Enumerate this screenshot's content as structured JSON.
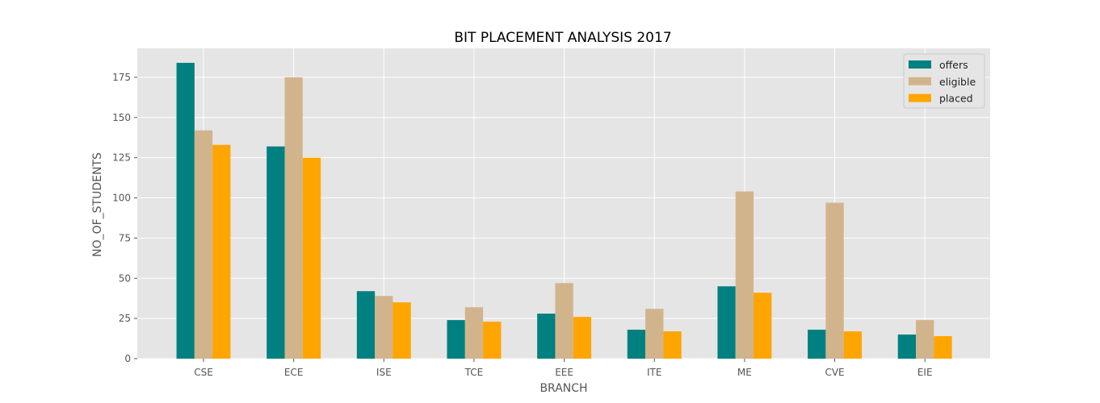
{
  "chart_data": {
    "type": "bar",
    "title": "BIT PLACEMENT ANALYSIS 2017",
    "xlabel": "BRANCH",
    "ylabel": "NO_OF_STUDENTS",
    "categories": [
      "CSE",
      "ECE",
      "ISE",
      "TCE",
      "EEE",
      "ITE",
      "ME",
      "CVE",
      "EIE"
    ],
    "series": [
      {
        "name": "offers",
        "color": "#008080",
        "values": [
          184,
          132,
          42,
          24,
          28,
          18,
          45,
          18,
          15
        ]
      },
      {
        "name": "eligible",
        "color": "#D2B48C",
        "values": [
          142,
          175,
          39,
          32,
          47,
          31,
          104,
          97,
          24
        ]
      },
      {
        "name": "placed",
        "color": "#FFA500",
        "values": [
          133,
          125,
          35,
          23,
          26,
          17,
          41,
          17,
          14
        ]
      }
    ],
    "ylim": [
      0,
      193
    ],
    "yticks": [
      0,
      25,
      50,
      75,
      100,
      125,
      150,
      175
    ],
    "grid": true,
    "legend_position": "top-right"
  }
}
